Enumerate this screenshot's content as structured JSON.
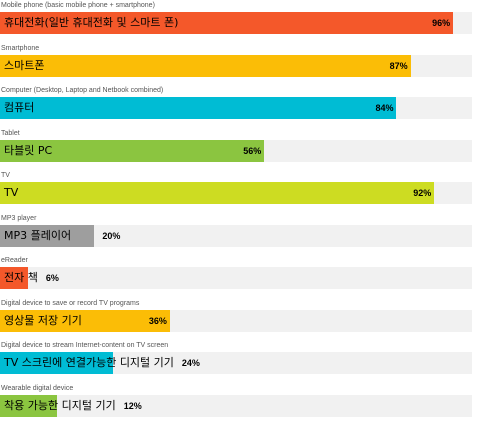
{
  "chart_data": {
    "type": "bar",
    "orientation": "horizontal",
    "xlim": [
      0,
      100
    ],
    "unit": "%",
    "categories": [
      {
        "caption": "Mobile phone (basic mobile phone + smartphone)",
        "label": "휴대전화(일반 휴대전화 및 스마트 폰)",
        "value": 96,
        "value_label": "96%",
        "color": "#f4582a"
      },
      {
        "caption": "Smartphone",
        "label": "스마트폰",
        "value": 87,
        "value_label": "87%",
        "color": "#fbbd06"
      },
      {
        "caption": "Computer (Desktop, Laptop and Netbook combined)",
        "label": "컴퓨터",
        "value": 84,
        "value_label": "84%",
        "color": "#00bcd4"
      },
      {
        "caption": "Tablet",
        "label": "타블릿 PC",
        "value": 56,
        "value_label": "56%",
        "color": "#8bc540"
      },
      {
        "caption": "TV",
        "label": "TV",
        "value": 92,
        "value_label": "92%",
        "color": "#cddc22"
      },
      {
        "caption": "MP3 player",
        "label": "MP3 플레이어",
        "value": 20,
        "value_label": "20%",
        "color": "#9e9e9e"
      },
      {
        "caption": "eReader",
        "label": "전자 책",
        "value": 6,
        "value_label": "6%",
        "color": "#f4582a"
      },
      {
        "caption": "Digital device to save or record TV programs",
        "label": "영상물 저장 기기",
        "value": 36,
        "value_label": "36%",
        "color": "#fbbd06"
      },
      {
        "caption": "Digital device to stream Internet-content on TV screen",
        "label": "TV 스크린에 연결가능한 디지털 기기",
        "value": 24,
        "value_label": "24%",
        "color": "#00bcd4"
      },
      {
        "caption": "Wearable digital device",
        "label": "착용 가능한 디지털 기기",
        "value": 12,
        "value_label": "12%",
        "color": "#8bc540"
      }
    ]
  }
}
